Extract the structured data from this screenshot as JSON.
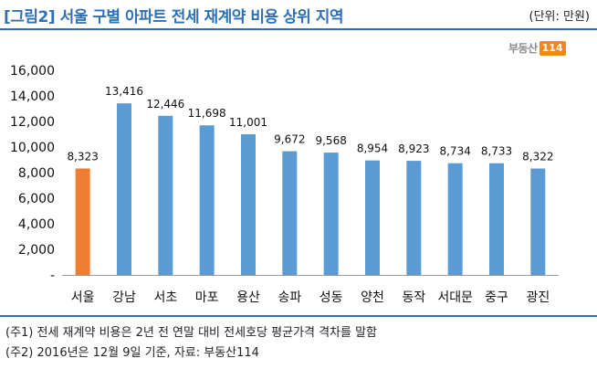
{
  "header": {
    "title": "[그림2] 서울 구별 아파트 전세 재계약 비용 상위 지역",
    "unit": "(단위: 만원)"
  },
  "logo": {
    "text": "부동산",
    "badge": "114"
  },
  "chart_data": {
    "type": "bar",
    "categories": [
      "서울",
      "강남",
      "서초",
      "마포",
      "용산",
      "송파",
      "성동",
      "양천",
      "동작",
      "서대문",
      "중구",
      "광진"
    ],
    "values": [
      8323,
      13416,
      12446,
      11698,
      11001,
      9672,
      9568,
      8954,
      8923,
      8734,
      8733,
      8322
    ],
    "value_labels": [
      "8,323",
      "13,416",
      "12,446",
      "11,698",
      "11,001",
      "9,672",
      "9,568",
      "8,954",
      "8,923",
      "8,734",
      "8,733",
      "8,322"
    ],
    "highlight_index": 0,
    "colors": {
      "highlight": "#ED7D31",
      "default": "#5B9BD5"
    },
    "y_ticks": [
      "-",
      "2,000",
      "4,000",
      "6,000",
      "8,000",
      "10,000",
      "12,000",
      "14,000",
      "16,000"
    ],
    "ylim": [
      0,
      16000
    ],
    "grid": false,
    "legend": "none",
    "title": "",
    "xlabel": "",
    "ylabel": ""
  },
  "notes": [
    "(주1) 전세 재계약 비용은 2년 전 연말 대비 전세호당 평균가격 격차를 말함",
    "(주2) 2016년은 12월 9일 기준, 자료: 부동산114"
  ]
}
